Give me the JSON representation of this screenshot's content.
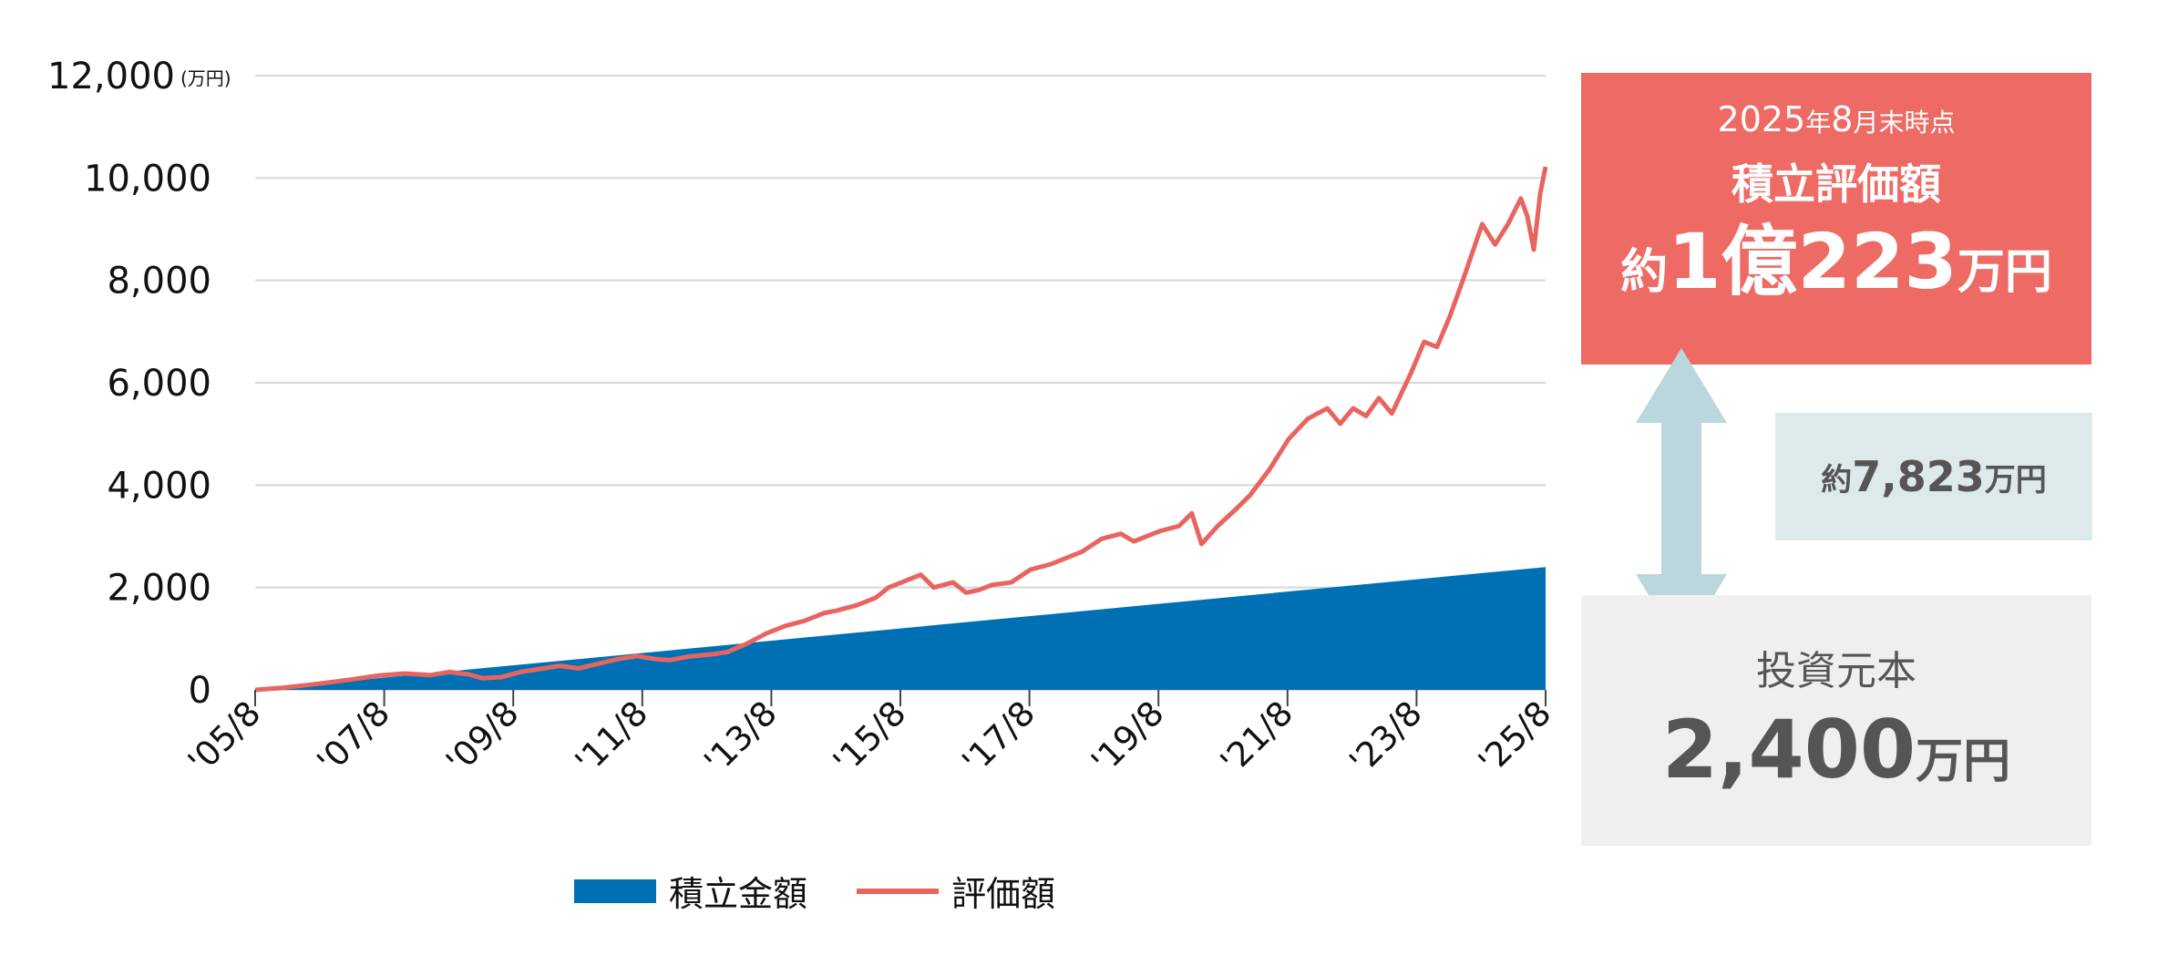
{
  "chart_data": {
    "type": "area+line",
    "y_unit": "(万円)",
    "ylim": [
      0,
      12000
    ],
    "yticks": [
      {
        "value": 0,
        "label": "0"
      },
      {
        "value": 2000,
        "label": "2,000"
      },
      {
        "value": 4000,
        "label": "4,000"
      },
      {
        "value": 6000,
        "label": "6,000"
      },
      {
        "value": 8000,
        "label": "8,000"
      },
      {
        "value": 10000,
        "label": "10,000"
      },
      {
        "value": 12000,
        "label": "12,000"
      }
    ],
    "grid": true,
    "xlim": [
      2005.583,
      2025.583
    ],
    "xticks": [
      {
        "value": 2005.583,
        "label": "'05/8"
      },
      {
        "value": 2007.583,
        "label": "'07/8"
      },
      {
        "value": 2009.583,
        "label": "'09/8"
      },
      {
        "value": 2011.583,
        "label": "'11/8"
      },
      {
        "value": 2013.583,
        "label": "'13/8"
      },
      {
        "value": 2015.583,
        "label": "'15/8"
      },
      {
        "value": 2017.583,
        "label": "'17/8"
      },
      {
        "value": 2019.583,
        "label": "'19/8"
      },
      {
        "value": 2021.583,
        "label": "'21/8"
      },
      {
        "value": 2023.583,
        "label": "'23/8"
      },
      {
        "value": 2025.583,
        "label": "'25/8"
      }
    ],
    "series": [
      {
        "name": "積立金額",
        "type": "area",
        "color": "#0070b5",
        "points": [
          [
            2005.583,
            0
          ],
          [
            2025.583,
            2400
          ]
        ]
      },
      {
        "name": "評価額",
        "type": "line",
        "color": "#e8655f",
        "points": [
          [
            2005.583,
            0
          ],
          [
            2006.0,
            40
          ],
          [
            2006.5,
            110
          ],
          [
            2007.0,
            190
          ],
          [
            2007.5,
            280
          ],
          [
            2007.9,
            320
          ],
          [
            2008.3,
            290
          ],
          [
            2008.6,
            350
          ],
          [
            2008.9,
            300
          ],
          [
            2009.1,
            230
          ],
          [
            2009.4,
            250
          ],
          [
            2009.7,
            350
          ],
          [
            2010.0,
            410
          ],
          [
            2010.3,
            470
          ],
          [
            2010.6,
            420
          ],
          [
            2010.9,
            510
          ],
          [
            2011.2,
            600
          ],
          [
            2011.5,
            660
          ],
          [
            2011.8,
            600
          ],
          [
            2012.0,
            580
          ],
          [
            2012.3,
            650
          ],
          [
            2012.7,
            700
          ],
          [
            2012.9,
            740
          ],
          [
            2013.2,
            900
          ],
          [
            2013.5,
            1100
          ],
          [
            2013.8,
            1250
          ],
          [
            2014.1,
            1350
          ],
          [
            2014.4,
            1500
          ],
          [
            2014.6,
            1550
          ],
          [
            2014.9,
            1650
          ],
          [
            2015.2,
            1800
          ],
          [
            2015.4,
            2000
          ],
          [
            2015.6,
            2100
          ],
          [
            2015.9,
            2250
          ],
          [
            2016.1,
            2000
          ],
          [
            2016.4,
            2100
          ],
          [
            2016.6,
            1900
          ],
          [
            2016.8,
            1950
          ],
          [
            2017.0,
            2050
          ],
          [
            2017.3,
            2100
          ],
          [
            2017.6,
            2350
          ],
          [
            2017.9,
            2450
          ],
          [
            2018.1,
            2550
          ],
          [
            2018.4,
            2700
          ],
          [
            2018.7,
            2950
          ],
          [
            2019.0,
            3050
          ],
          [
            2019.2,
            2900
          ],
          [
            2019.4,
            3000
          ],
          [
            2019.6,
            3100
          ],
          [
            2019.9,
            3200
          ],
          [
            2020.1,
            3450
          ],
          [
            2020.25,
            2850
          ],
          [
            2020.5,
            3200
          ],
          [
            2020.8,
            3550
          ],
          [
            2021.0,
            3800
          ],
          [
            2021.3,
            4300
          ],
          [
            2021.6,
            4900
          ],
          [
            2021.9,
            5300
          ],
          [
            2022.2,
            5500
          ],
          [
            2022.4,
            5200
          ],
          [
            2022.6,
            5500
          ],
          [
            2022.8,
            5350
          ],
          [
            2023.0,
            5700
          ],
          [
            2023.2,
            5400
          ],
          [
            2023.5,
            6200
          ],
          [
            2023.7,
            6800
          ],
          [
            2023.9,
            6700
          ],
          [
            2024.1,
            7300
          ],
          [
            2024.3,
            8000
          ],
          [
            2024.6,
            9100
          ],
          [
            2024.8,
            8700
          ],
          [
            2025.0,
            9100
          ],
          [
            2025.2,
            9600
          ],
          [
            2025.3,
            9250
          ],
          [
            2025.4,
            8600
          ],
          [
            2025.5,
            9700
          ],
          [
            2025.583,
            10220
          ]
        ]
      }
    ],
    "legend": "bottom"
  },
  "legend_items": {
    "area_label": "積立金額",
    "line_label": "評価額"
  },
  "summary": {
    "date_label_year": "2025",
    "date_label_year_unit": "年",
    "date_label_month": "8",
    "date_label_month_unit": "月末時点",
    "title": "積立評価額",
    "value_prefix": "約",
    "value_big": "1億223",
    "value_unit": "万円"
  },
  "difference": {
    "prefix": "約",
    "value": "7,823",
    "unit": "万円"
  },
  "principal": {
    "title": "投資元本",
    "value": "2,400",
    "unit": "万円"
  },
  "colors": {
    "area": "#0070b5",
    "line": "#e8655f",
    "summary_bg": "#ee6a64",
    "difference_bg": "#dde9eb",
    "principal_bg": "#efefef",
    "arrow": "#b9d7dc",
    "grid": "#d7d7d7"
  }
}
